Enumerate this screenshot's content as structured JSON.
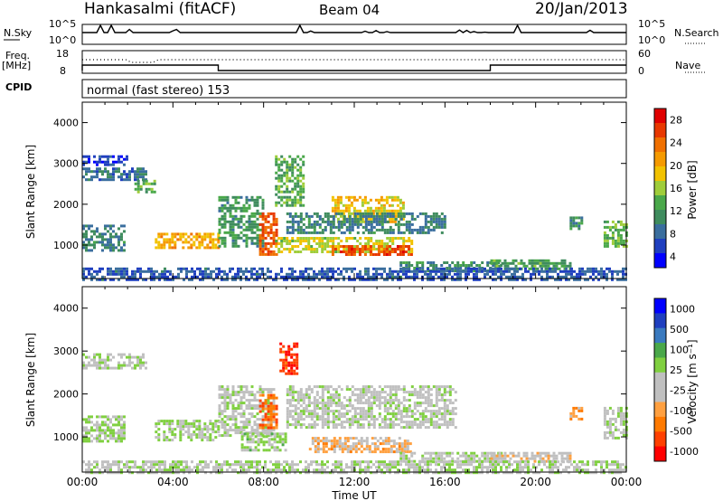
{
  "header": {
    "station": "Hankasalmi (fitACF)",
    "beam": "Beam 04",
    "date": "20/Jan/2013"
  },
  "top_panel": {
    "left_label": "N.Sky",
    "right_label": "N.Search",
    "ticks_left": [
      "10^5",
      "10^0"
    ],
    "ticks_right": [
      "10^5",
      "10^0"
    ]
  },
  "freq_panel": {
    "left_label_1": "Freq.",
    "left_label_2": "[MHz]",
    "ticks_left": [
      "18",
      "8"
    ],
    "ticks_right": [
      "60",
      "0"
    ],
    "right_label": "Nave"
  },
  "cpid_panel": {
    "label": "CPID",
    "mode_text": "normal (fast stereo) 153"
  },
  "colors": {
    "power_scale": [
      "#0000ff",
      "#1f3fbf",
      "#3a6e9e",
      "#3f8c5e",
      "#4aa84a",
      "#9fcd3a",
      "#f2c200",
      "#f59a00",
      "#f07000",
      "#e83800",
      "#e00000"
    ],
    "velocity_scale": [
      "#ff0000",
      "#ff4000",
      "#ff7a00",
      "#ffa040",
      "#c0c0c0",
      "#c0c0c0",
      "#80d040",
      "#4aa84a",
      "#3a7abf",
      "#1f3fbf",
      "#0000ff"
    ]
  },
  "chart_data": [
    {
      "type": "heatmap",
      "title": "",
      "xlabel": "",
      "ylabel": "Slant Range [km]",
      "colorbar_label": "Power [dB]",
      "colorbar_ticks": [
        "28",
        "24",
        "20",
        "16",
        "12",
        "8",
        "4"
      ],
      "x_ticks": [
        "00:00",
        "04:00",
        "08:00",
        "12:00",
        "16:00",
        "20:00",
        "00:00"
      ],
      "y_ticks": [
        "4000",
        "3000",
        "2000",
        "1000"
      ],
      "xlim": [
        0,
        24
      ],
      "ylim": [
        180,
        4500
      ],
      "clim": [
        0,
        32
      ],
      "regions": [
        {
          "t": [
            0.0,
            2.8
          ],
          "r": [
            2600,
            2900
          ],
          "v": 8
        },
        {
          "t": [
            2.3,
            3.2
          ],
          "r": [
            2300,
            2600
          ],
          "v": 13
        },
        {
          "t": [
            0.0,
            1.8
          ],
          "r": [
            900,
            1500
          ],
          "v": 9
        },
        {
          "t": [
            0.0,
            2.0
          ],
          "r": [
            2950,
            3200
          ],
          "v": 4
        },
        {
          "t": [
            3.2,
            6.0
          ],
          "r": [
            950,
            1300
          ],
          "v": 21
        },
        {
          "t": [
            6.0,
            8.0
          ],
          "r": [
            1000,
            2200
          ],
          "v": 11
        },
        {
          "t": [
            7.8,
            8.6
          ],
          "r": [
            800,
            1800
          ],
          "v": 26
        },
        {
          "t": [
            8.5,
            9.8
          ],
          "r": [
            2000,
            3200
          ],
          "v": 13
        },
        {
          "t": [
            8.5,
            14.5
          ],
          "r": [
            850,
            1200
          ],
          "v": 17
        },
        {
          "t": [
            11.0,
            14.5
          ],
          "r": [
            750,
            1000
          ],
          "v": 27
        },
        {
          "t": [
            11.0,
            14.2
          ],
          "r": [
            1600,
            2200
          ],
          "v": 19
        },
        {
          "t": [
            9.0,
            16.0
          ],
          "r": [
            1300,
            1800
          ],
          "v": 9
        },
        {
          "t": [
            14.0,
            18.5
          ],
          "r": [
            400,
            600
          ],
          "v": 10
        },
        {
          "t": [
            18.0,
            21.5
          ],
          "r": [
            400,
            650
          ],
          "v": 12
        },
        {
          "t": [
            21.5,
            22.0
          ],
          "r": [
            1400,
            1700
          ],
          "v": 10
        },
        {
          "t": [
            23.0,
            24.0
          ],
          "r": [
            1000,
            1600
          ],
          "v": 14
        },
        {
          "t": [
            0.0,
            24.0
          ],
          "r": [
            180,
            450
          ],
          "v": 6
        }
      ]
    },
    {
      "type": "heatmap",
      "title": "",
      "xlabel": "Time UT",
      "ylabel": "Slant Range [km]",
      "colorbar_label": "Velocity [m s⁻¹]",
      "colorbar_ticks": [
        "1000",
        "500",
        "100",
        "25",
        "-25",
        "-100",
        "-500",
        "-1000"
      ],
      "x_ticks": [
        "00:00",
        "04:00",
        "08:00",
        "12:00",
        "16:00",
        "20:00",
        "00:00"
      ],
      "y_ticks": [
        "4000",
        "3000",
        "2000",
        "1000"
      ],
      "xlim": [
        0,
        24
      ],
      "ylim": [
        180,
        4500
      ],
      "clim": [
        -1000,
        1000
      ],
      "regions": [
        {
          "t": [
            0.0,
            2.8
          ],
          "r": [
            2600,
            2950
          ],
          "v": 0
        },
        {
          "t": [
            0.0,
            1.8
          ],
          "r": [
            900,
            1500
          ],
          "v": 60
        },
        {
          "t": [
            3.2,
            6.0
          ],
          "r": [
            950,
            1400
          ],
          "v": 90
        },
        {
          "t": [
            6.0,
            8.5
          ],
          "r": [
            1000,
            2200
          ],
          "v": 0
        },
        {
          "t": [
            7.8,
            8.6
          ],
          "r": [
            1200,
            2000
          ],
          "v": -600
        },
        {
          "t": [
            8.7,
            9.5
          ],
          "r": [
            2500,
            3200
          ],
          "v": -800
        },
        {
          "t": [
            7.0,
            9.0
          ],
          "r": [
            700,
            1100
          ],
          "v": 120
        },
        {
          "t": [
            9.0,
            16.5
          ],
          "r": [
            1200,
            2200
          ],
          "v": 0
        },
        {
          "t": [
            10.0,
            14.5
          ],
          "r": [
            650,
            1000
          ],
          "v": -300
        },
        {
          "t": [
            14.0,
            18.5
          ],
          "r": [
            400,
            650
          ],
          "v": 40
        },
        {
          "t": [
            18.0,
            21.5
          ],
          "r": [
            400,
            650
          ],
          "v": -150
        },
        {
          "t": [
            21.5,
            22.0
          ],
          "r": [
            1400,
            1700
          ],
          "v": -400
        },
        {
          "t": [
            23.0,
            24.0
          ],
          "r": [
            1000,
            1700
          ],
          "v": 0
        },
        {
          "t": [
            0.0,
            24.0
          ],
          "r": [
            180,
            450
          ],
          "v": 30
        }
      ]
    }
  ]
}
